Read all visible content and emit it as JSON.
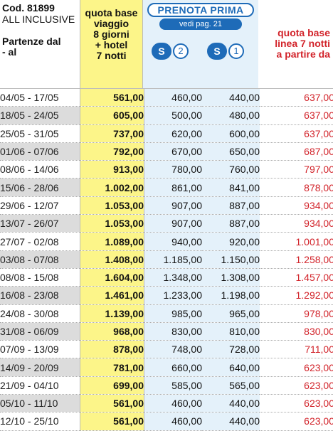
{
  "header": {
    "code": "Cod. 81899",
    "package": "ALL INCLUSIVE",
    "departures_label_line1": "Partenze dal",
    "departures_label_line2": "- al",
    "base_quote_lines": [
      "quota base",
      "viaggio",
      "8 giorni",
      "+ hotel",
      "7 notti"
    ],
    "prenota_prima_title": "PRENOTA PRIMA",
    "prenota_prima_sub": "vedi pag. 21",
    "badge_a": {
      "letter": "S",
      "number": "2"
    },
    "badge_b": {
      "letter": "S",
      "number": "1"
    },
    "line_quote_lines": [
      "quota base",
      "linea 7 notti",
      "a partire da"
    ]
  },
  "colors": {
    "base_column_bg": "#fcf589",
    "prenota_prima_bg": "#e4f1fa",
    "prenota_prima_accent": "#1e6bb8",
    "line_quote_text": "#d2232a",
    "alt_row_date_bg": "#dcdcdc"
  },
  "columns": [
    "Partenze dal - al",
    "quota base viaggio 8 giorni + hotel 7 notti",
    "S 2",
    "S 1",
    "quota base linea 7 notti a partire da"
  ],
  "rows": [
    {
      "dates": "04/05 - 17/05",
      "base": "561,00",
      "s2": "460,00",
      "s1": "440,00",
      "line": "637,00"
    },
    {
      "dates": "18/05 - 24/05",
      "base": "605,00",
      "s2": "500,00",
      "s1": "480,00",
      "line": "637,00"
    },
    {
      "dates": "25/05 - 31/05",
      "base": "737,00",
      "s2": "620,00",
      "s1": "600,00",
      "line": "637,00"
    },
    {
      "dates": "01/06 - 07/06",
      "base": "792,00",
      "s2": "670,00",
      "s1": "650,00",
      "line": "687,00"
    },
    {
      "dates": "08/06 - 14/06",
      "base": "913,00",
      "s2": "780,00",
      "s1": "760,00",
      "line": "797,00"
    },
    {
      "dates": "15/06 - 28/06",
      "base": "1.002,00",
      "s2": "861,00",
      "s1": "841,00",
      "line": "878,00"
    },
    {
      "dates": "29/06 - 12/07",
      "base": "1.053,00",
      "s2": "907,00",
      "s1": "887,00",
      "line": "934,00"
    },
    {
      "dates": "13/07 - 26/07",
      "base": "1.053,00",
      "s2": "907,00",
      "s1": "887,00",
      "line": "934,00"
    },
    {
      "dates": "27/07 - 02/08",
      "base": "1.089,00",
      "s2": "940,00",
      "s1": "920,00",
      "line": "1.001,00"
    },
    {
      "dates": "03/08 - 07/08",
      "base": "1.408,00",
      "s2": "1.185,00",
      "s1": "1.150,00",
      "line": "1.258,00"
    },
    {
      "dates": "08/08 - 15/08",
      "base": "1.604,00",
      "s2": "1.348,00",
      "s1": "1.308,00",
      "line": "1.457,00"
    },
    {
      "dates": "16/08 - 23/08",
      "base": "1.461,00",
      "s2": "1.233,00",
      "s1": "1.198,00",
      "line": "1.292,00"
    },
    {
      "dates": "24/08 - 30/08",
      "base": "1.139,00",
      "s2": "985,00",
      "s1": "965,00",
      "line": "978,00"
    },
    {
      "dates": "31/08 - 06/09",
      "base": "968,00",
      "s2": "830,00",
      "s1": "810,00",
      "line": "830,00"
    },
    {
      "dates": "07/09 - 13/09",
      "base": "878,00",
      "s2": "748,00",
      "s1": "728,00",
      "line": "711,00"
    },
    {
      "dates": "14/09 - 20/09",
      "base": "781,00",
      "s2": "660,00",
      "s1": "640,00",
      "line": "623,00"
    },
    {
      "dates": "21/09 - 04/10",
      "base": "699,00",
      "s2": "585,00",
      "s1": "565,00",
      "line": "623,00"
    },
    {
      "dates": "05/10 - 11/10",
      "base": "561,00",
      "s2": "460,00",
      "s1": "440,00",
      "line": "623,00"
    },
    {
      "dates": "12/10 - 25/10",
      "base": "561,00",
      "s2": "460,00",
      "s1": "440,00",
      "line": "623,00"
    }
  ]
}
